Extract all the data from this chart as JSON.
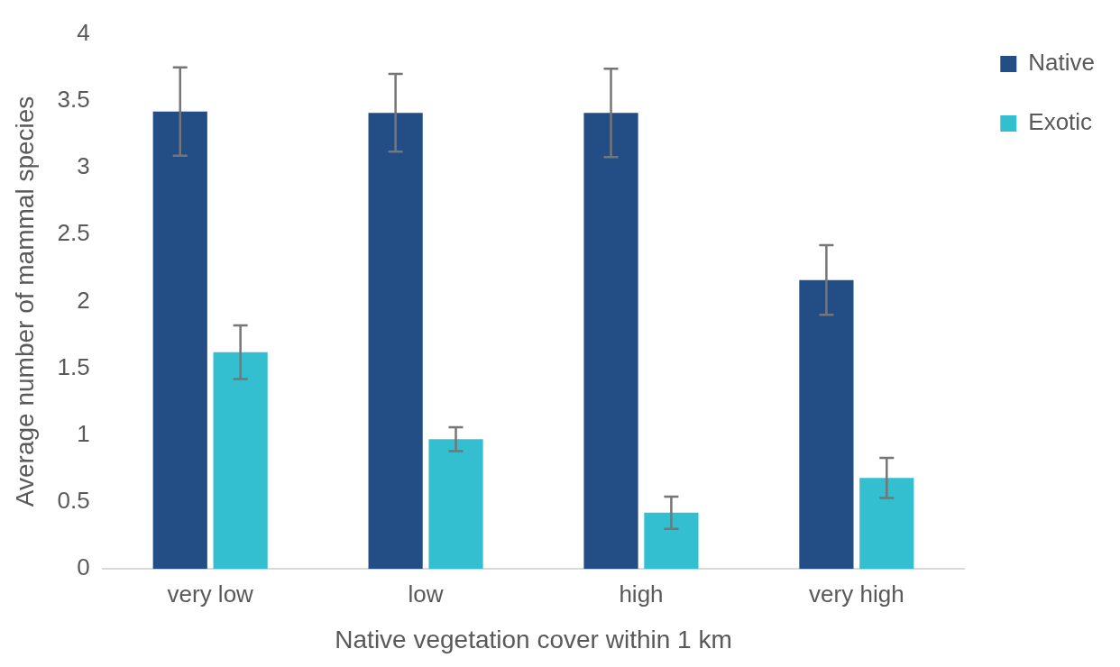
{
  "chart_data": {
    "type": "bar",
    "xlabel": "Native vegetation cover within 1 km",
    "ylabel": "Average number of mammal species",
    "categories": [
      "very low",
      "low",
      "high",
      "very high"
    ],
    "series": [
      {
        "name": "Native",
        "color": "#234d85",
        "values": [
          3.42,
          3.41,
          3.41,
          2.16
        ],
        "errors": [
          0.33,
          0.29,
          0.33,
          0.26
        ]
      },
      {
        "name": "Exotic",
        "color": "#33bfcf",
        "values": [
          1.62,
          0.97,
          0.42,
          0.68
        ],
        "errors": [
          0.2,
          0.09,
          0.12,
          0.15
        ]
      }
    ],
    "ylim": [
      0,
      4
    ],
    "yticks": [
      0,
      0.5,
      1,
      1.5,
      2,
      2.5,
      3,
      3.5,
      4
    ],
    "grid": false,
    "legend": "top right"
  }
}
